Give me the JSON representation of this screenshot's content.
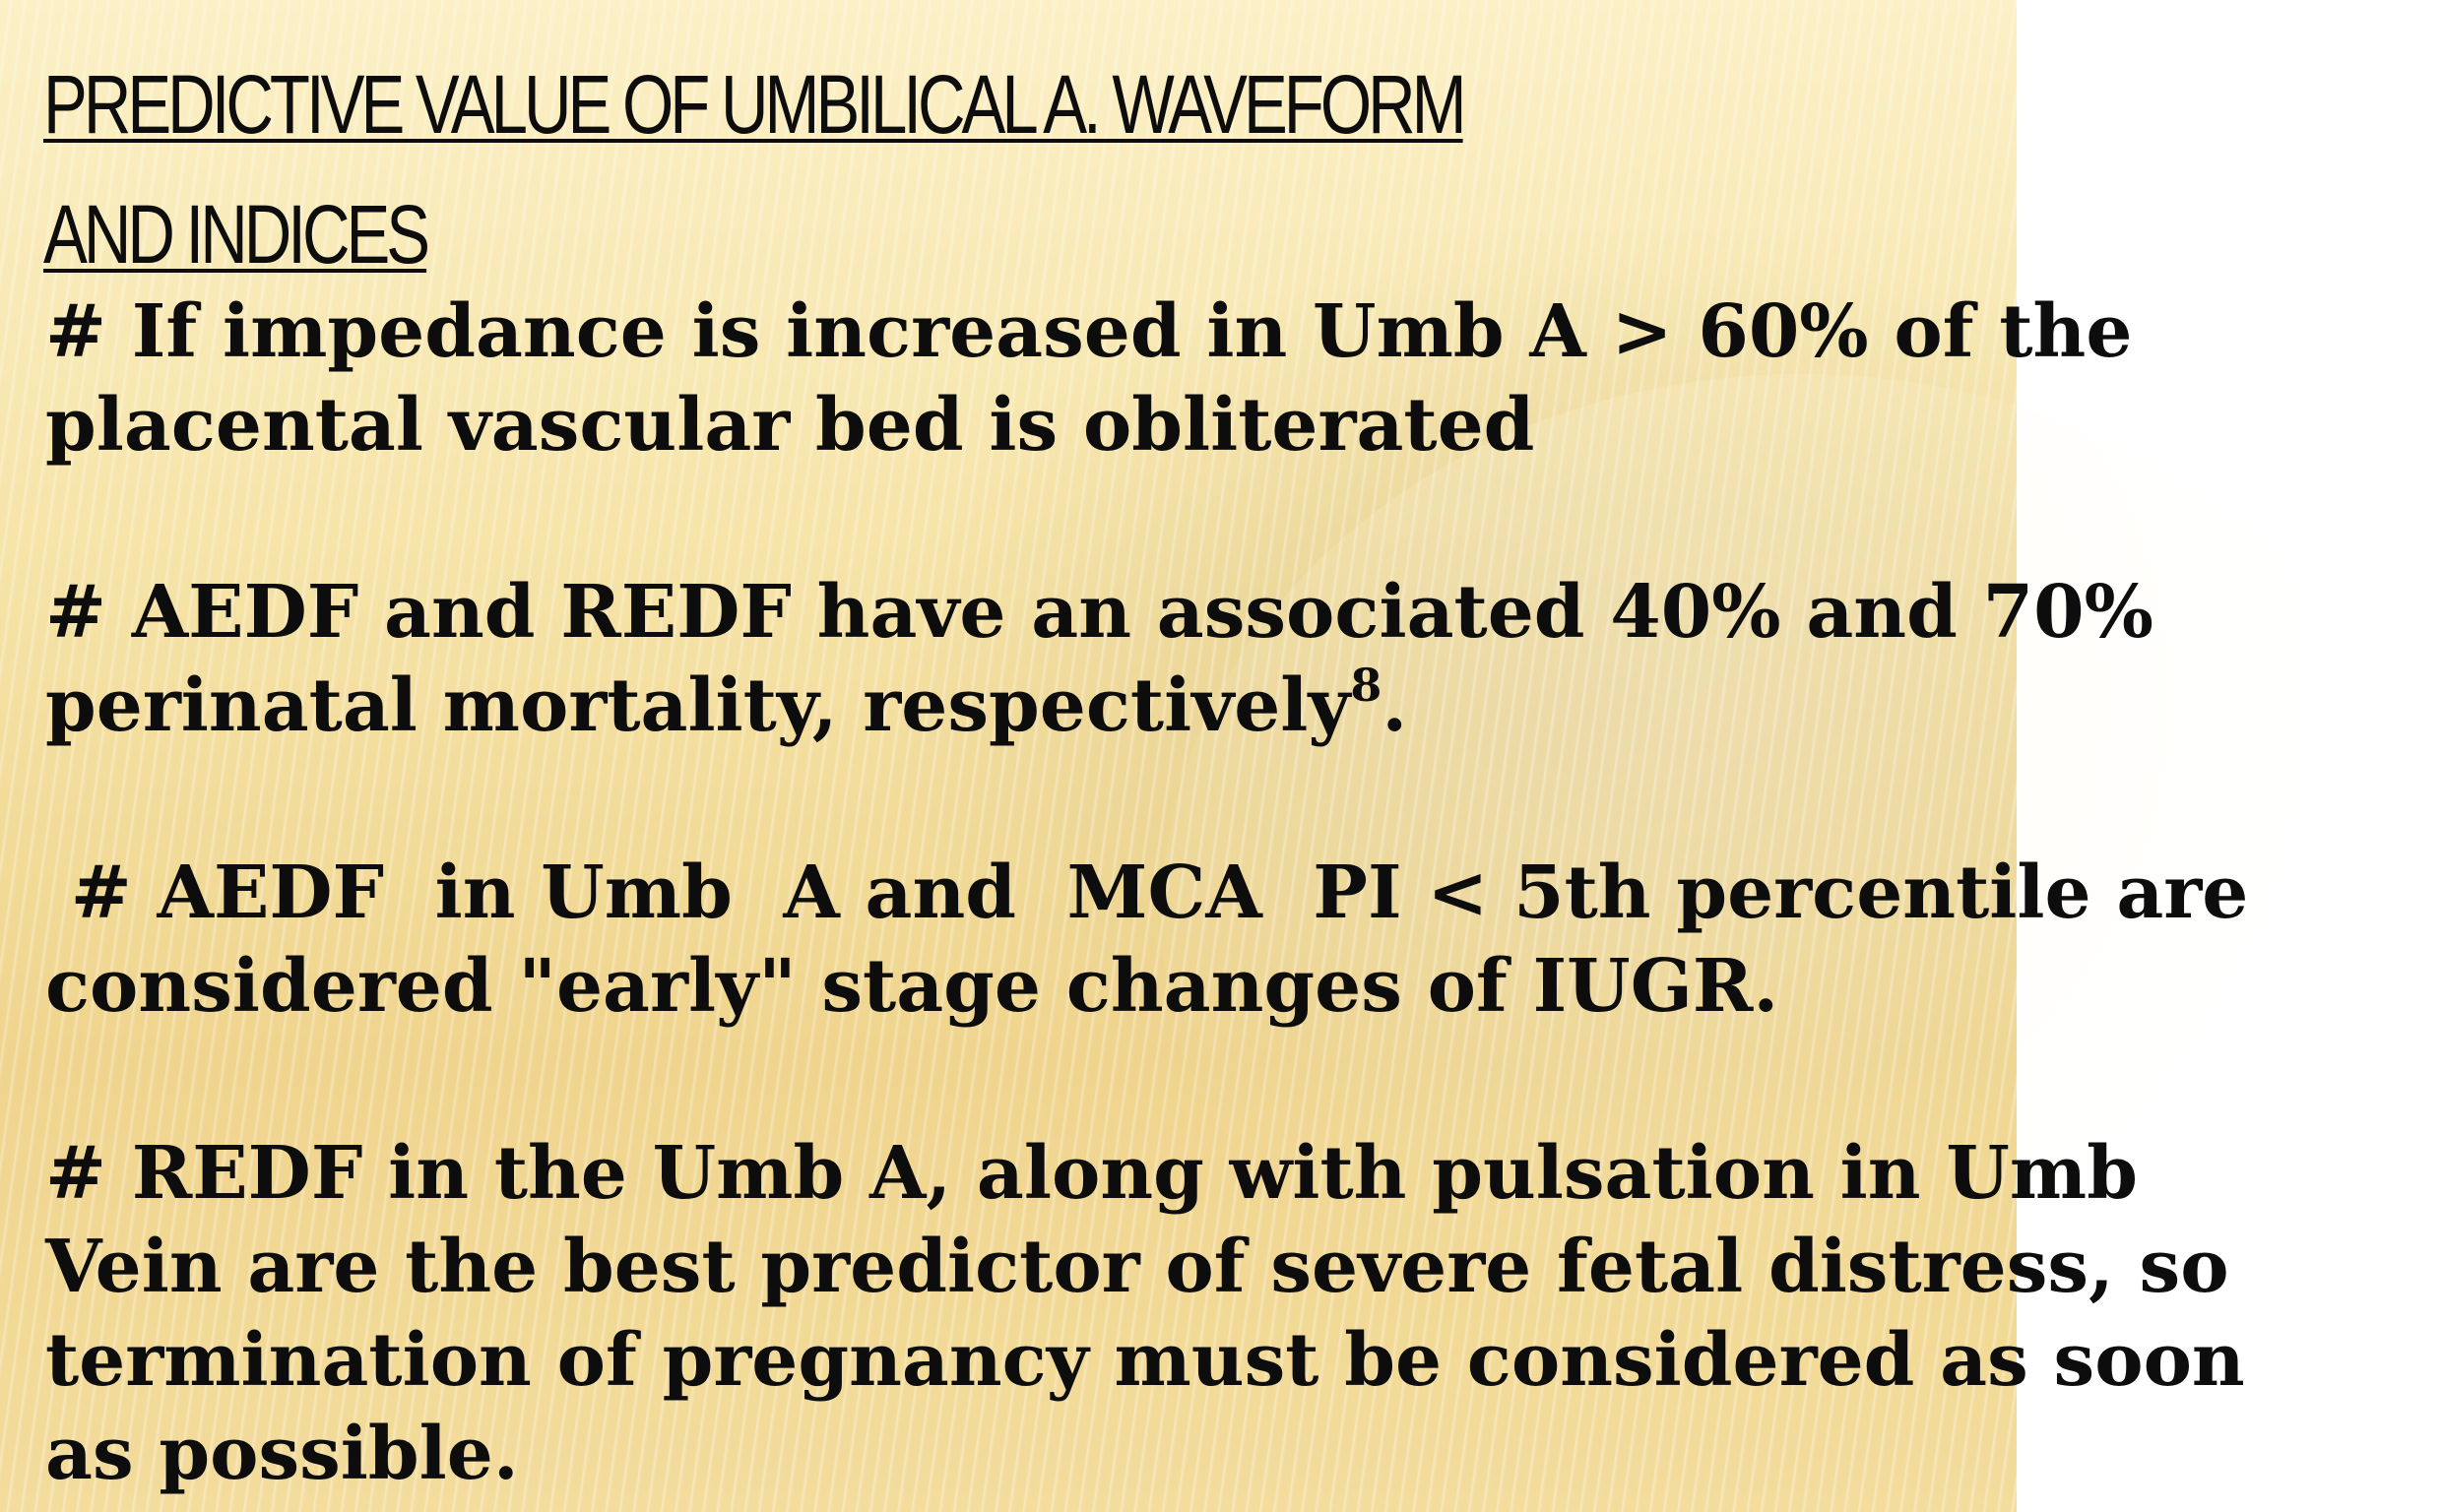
{
  "slide": {
    "title_lines": [
      "PREDICTIVE  VALUE  OF UMBILICAL  A. WAVEFORM",
      "AND INDICES"
    ],
    "paragraphs": [
      {
        "lines": [
          "# If  impedance is  increased in Umb A  > 60% of the",
          "placental vascular bed is obliterated"
        ]
      },
      {
        "lines": [
          "# AEDF and REDF have an associated 40% and 70%",
          "perinatal mortality, respectively"
        ],
        "superscript": "8",
        "tail": "."
      },
      {
        "lines": [
          " # AEDF  in Umb  A and  MCA  PI < 5th percentile are",
          "considered \"early\" stage changes of IUGR."
        ]
      },
      {
        "lines": [
          "# REDF in the Umb A, along with  pulsation in Umb",
          "Vein are the best predictor of severe fetal distress, so",
          "termination of pregnancy must be considered as soon",
          "as possible."
        ]
      }
    ]
  }
}
